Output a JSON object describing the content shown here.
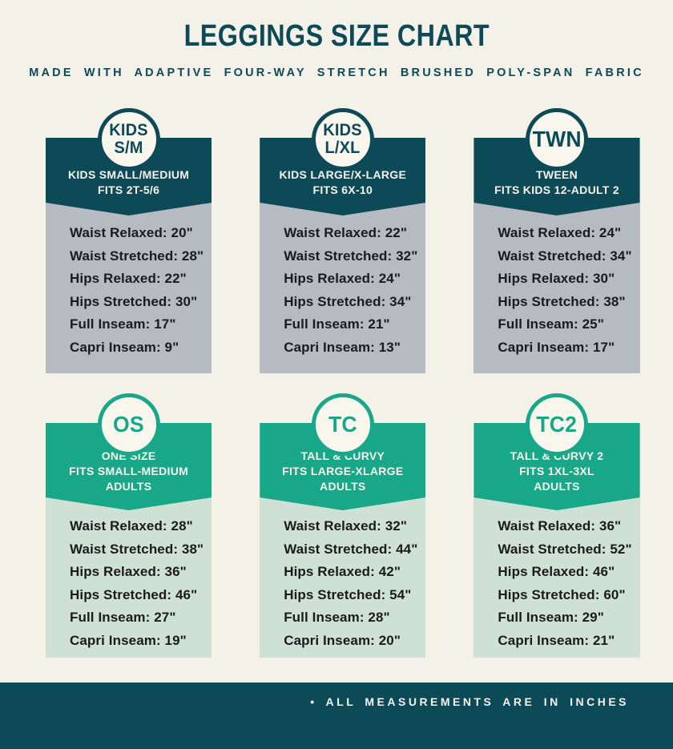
{
  "header": {
    "title": "LEGGINGS SIZE CHART",
    "subtitle": "MADE WITH ADAPTIVE FOUR-WAY STRETCH BRUSHED POLY-SPAN FABRIC"
  },
  "measurement_labels": [
    "Waist Relaxed",
    "Waist Stretched",
    "Hips Relaxed",
    "Hips Stretched",
    "Full Inseam",
    "Capri Inseam"
  ],
  "cards": [
    {
      "id": "kids-sm",
      "theme": "teal",
      "badge_lines": [
        "KIDS",
        "S/M"
      ],
      "description_lines": [
        "KIDS SMALL/MEDIUM",
        "FITS 2T-5/6"
      ],
      "values": [
        "20\"",
        "28\"",
        "22\"",
        "30\"",
        "17\"",
        "9\""
      ]
    },
    {
      "id": "kids-lxl",
      "theme": "teal",
      "badge_lines": [
        "KIDS",
        "L/XL"
      ],
      "description_lines": [
        "KIDS LARGE/X-LARGE",
        "FITS 6X-10"
      ],
      "values": [
        "22\"",
        "32\"",
        "24\"",
        "34\"",
        "21\"",
        "13\""
      ]
    },
    {
      "id": "tween",
      "theme": "teal",
      "badge_lines": [
        "TWN"
      ],
      "description_lines": [
        "TWEEN",
        "FITS KIDS 12-ADULT 2"
      ],
      "values": [
        "24\"",
        "34\"",
        "30\"",
        "38\"",
        "25\"",
        "17\""
      ]
    },
    {
      "id": "one-size",
      "theme": "green",
      "badge_lines": [
        "OS"
      ],
      "description_lines": [
        "ONE SIZE",
        "FITS SMALL-MEDIUM",
        "ADULTS"
      ],
      "values": [
        "28\"",
        "38\"",
        "36\"",
        "46\"",
        "27\"",
        "19\""
      ]
    },
    {
      "id": "tall-curvy",
      "theme": "green",
      "badge_lines": [
        "TC"
      ],
      "description_lines": [
        "TALL & CURVY",
        "FITS LARGE-XLARGE",
        "ADULTS"
      ],
      "values": [
        "32\"",
        "44\"",
        "42\"",
        "54\"",
        "28\"",
        "20\""
      ]
    },
    {
      "id": "tall-curvy-2",
      "theme": "green",
      "badge_lines": [
        "TC2"
      ],
      "description_lines": [
        "TALL & CURVY 2",
        "FITS 1XL-3XL",
        "ADULTS"
      ],
      "values": [
        "36\"",
        "52\"",
        "46\"",
        "60\"",
        "29\"",
        "21\""
      ]
    }
  ],
  "footer": {
    "bullet": "•",
    "note": "ALL MEASUREMENTS ARE IN INCHES"
  },
  "colors": {
    "background": "#f4f1e8",
    "dark_teal": "#0d4a57",
    "gray_body": "#b5bbc1",
    "green": "#19a78a",
    "light_green_body": "#cfe0d4",
    "text_dark": "#1b1b1d",
    "text_light": "#f6f3ea"
  }
}
